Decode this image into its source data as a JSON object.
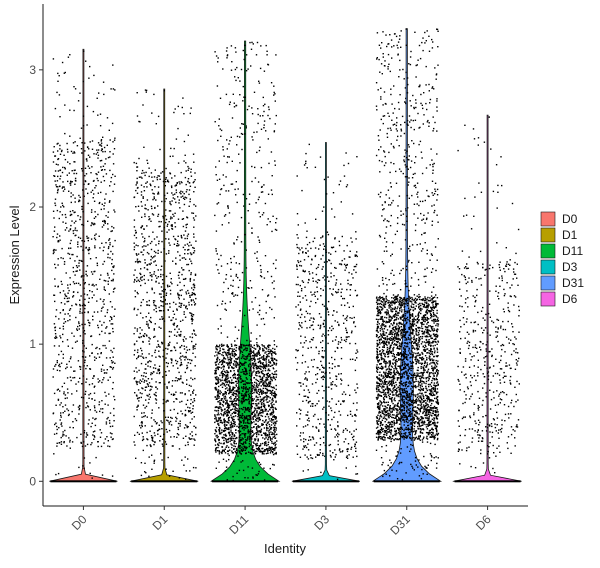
{
  "chart_data": {
    "type": "violin",
    "xlabel": "Identity",
    "ylabel": "Expression Level",
    "ylim": [
      -0.18,
      3.48
    ],
    "yticks": [
      0,
      1,
      2,
      3
    ],
    "grid": false,
    "legend_position": "right",
    "categories": [
      "D0",
      "D1",
      "D11",
      "D3",
      "D31",
      "D6"
    ],
    "colors": {
      "D0": "#F8766D",
      "D1": "#B79F00",
      "D11": "#00BA38",
      "D3": "#00BFC4",
      "D31": "#619CFF",
      "D6": "#F564E3"
    },
    "groups": [
      {
        "name": "D0",
        "max": 3.15,
        "zero_fraction": 0.88,
        "n_points": 950,
        "dense_low": 0.25,
        "dense_high": 2.5
      },
      {
        "name": "D1",
        "max": 2.86,
        "zero_fraction": 0.85,
        "n_points": 1150,
        "dense_low": 0.25,
        "dense_high": 2.3
      },
      {
        "name": "D11",
        "max": 3.21,
        "zero_fraction": 0.52,
        "n_points": 2300,
        "dense_low": 0.2,
        "dense_high": 1.0
      },
      {
        "name": "D3",
        "max": 2.47,
        "zero_fraction": 0.9,
        "n_points": 650,
        "dense_low": 0.15,
        "dense_high": 1.8
      },
      {
        "name": "D31",
        "max": 3.3,
        "zero_fraction": 0.5,
        "n_points": 3300,
        "dense_low": 0.3,
        "dense_high": 1.35
      },
      {
        "name": "D6",
        "max": 2.67,
        "zero_fraction": 0.93,
        "n_points": 480,
        "dense_low": 0.2,
        "dense_high": 1.6
      }
    ]
  }
}
